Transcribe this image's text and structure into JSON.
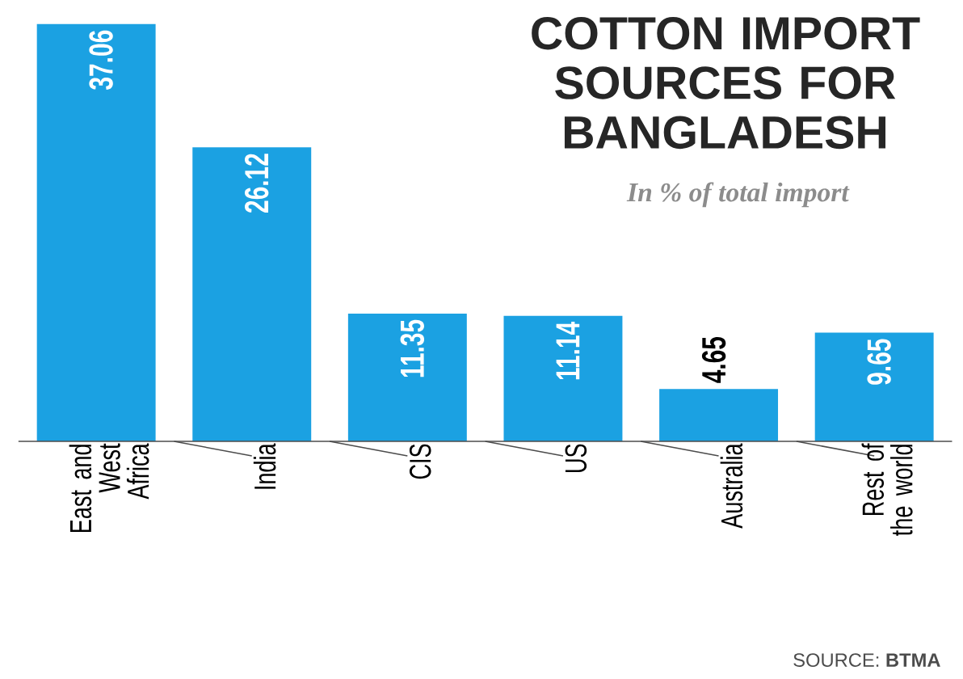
{
  "chart_data": {
    "type": "bar",
    "title": "COTTON IMPORT SOURCES FOR BANGLADESH",
    "subtitle": "In % of total import",
    "categories": [
      "East and West Africa",
      "India",
      "CIS",
      "US",
      "Australia",
      "Rest of the world"
    ],
    "values": [
      37.06,
      26.12,
      11.35,
      11.14,
      4.65,
      9.65
    ],
    "color": "#1ba1e2",
    "data_labels": true,
    "annotations": [
      "SOURCE: **BTMA**"
    ]
  }
}
